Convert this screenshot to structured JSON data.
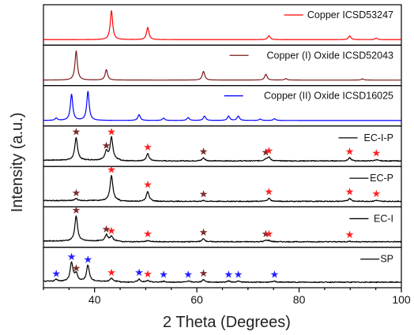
{
  "chart_data": {
    "type": "line",
    "layout": "stacked-panels",
    "xlabel": "2 Theta (Degrees)",
    "ylabel": "Intensity (a.u.)",
    "xlim": [
      30,
      100
    ],
    "x_ticks": [
      40,
      60,
      80,
      100
    ],
    "y_ticks_shown": false,
    "legend_position": "top-right of each panel",
    "marker_legend": {
      "dark_star": "Copper (I) Oxide peaks",
      "red_star": "Copper peaks",
      "blue_star": "Copper (II) Oxide peaks"
    },
    "colors": {
      "copper": "#ff0000",
      "cu2o": "#7a1a1a",
      "cuo": "#0000ff",
      "sample": "#000000",
      "star_red": "#ff2020",
      "star_dark": "#7a2a2a",
      "star_blue": "#2020ff"
    },
    "series": [
      {
        "name": "Copper ICSD53247",
        "color": "#ff0000",
        "kind": "reference",
        "peaks": [
          [
            43.3,
            1.0
          ],
          [
            50.4,
            0.42
          ],
          [
            74.1,
            0.14
          ],
          [
            89.9,
            0.13
          ],
          [
            95.1,
            0.05
          ]
        ],
        "stars": []
      },
      {
        "name": "Copper (I) Oxide ICSD52043",
        "color": "#7a1a1a",
        "kind": "reference",
        "peaks": [
          [
            36.4,
            1.0
          ],
          [
            42.3,
            0.36
          ],
          [
            61.3,
            0.3
          ],
          [
            73.5,
            0.2
          ],
          [
            77.4,
            0.05
          ],
          [
            92.4,
            0.04
          ]
        ],
        "stars": []
      },
      {
        "name": "Copper (II) Oxide ICSD16025",
        "color": "#0000ff",
        "kind": "reference",
        "peaks": [
          [
            32.5,
            0.08
          ],
          [
            35.5,
            0.9
          ],
          [
            38.7,
            1.0
          ],
          [
            48.7,
            0.2
          ],
          [
            53.5,
            0.08
          ],
          [
            58.3,
            0.1
          ],
          [
            61.5,
            0.15
          ],
          [
            66.2,
            0.15
          ],
          [
            68.1,
            0.15
          ],
          [
            72.4,
            0.05
          ],
          [
            75.2,
            0.06
          ]
        ],
        "stars": []
      },
      {
        "name": "EC-I-P",
        "color": "#000000",
        "kind": "sample",
        "peaks": [
          [
            36.4,
            0.9
          ],
          [
            42.3,
            0.35
          ],
          [
            43.3,
            0.9
          ],
          [
            50.4,
            0.28
          ],
          [
            61.3,
            0.12
          ],
          [
            73.5,
            0.08
          ],
          [
            74.1,
            0.14
          ],
          [
            89.9,
            0.12
          ],
          [
            95.1,
            0.05
          ]
        ],
        "stars": [
          [
            36.4,
            "dark"
          ],
          [
            42.3,
            "dark"
          ],
          [
            43.3,
            "red"
          ],
          [
            50.4,
            "red"
          ],
          [
            61.3,
            "dark"
          ],
          [
            73.5,
            "dark"
          ],
          [
            74.1,
            "red"
          ],
          [
            89.9,
            "red"
          ],
          [
            95.1,
            "red"
          ]
        ]
      },
      {
        "name": "EC-P",
        "color": "#000000",
        "kind": "sample",
        "peaks": [
          [
            36.4,
            0.08
          ],
          [
            43.3,
            1.0
          ],
          [
            50.4,
            0.4
          ],
          [
            61.3,
            0.03
          ],
          [
            74.1,
            0.12
          ],
          [
            89.9,
            0.12
          ],
          [
            95.1,
            0.04
          ]
        ],
        "stars": [
          [
            36.4,
            "dark"
          ],
          [
            43.3,
            "red"
          ],
          [
            50.4,
            "red"
          ],
          [
            61.3,
            "dark"
          ],
          [
            74.1,
            "red"
          ],
          [
            89.9,
            "red"
          ],
          [
            95.1,
            "red"
          ]
        ]
      },
      {
        "name": "EC-I",
        "color": "#000000",
        "kind": "sample",
        "peaks": [
          [
            36.4,
            1.0
          ],
          [
            42.3,
            0.25
          ],
          [
            43.3,
            0.18
          ],
          [
            50.4,
            0.05
          ],
          [
            61.3,
            0.12
          ],
          [
            73.5,
            0.05
          ],
          [
            74.1,
            0.05
          ],
          [
            89.9,
            0.02
          ]
        ],
        "stars": [
          [
            36.4,
            "dark"
          ],
          [
            42.3,
            "dark"
          ],
          [
            43.3,
            "red"
          ],
          [
            50.4,
            "red"
          ],
          [
            61.3,
            "dark"
          ],
          [
            73.5,
            "dark"
          ],
          [
            74.1,
            "red"
          ],
          [
            89.9,
            "red"
          ]
        ]
      },
      {
        "name": "SP",
        "color": "#000000",
        "kind": "sample",
        "peaks": [
          [
            32.5,
            0.08
          ],
          [
            35.5,
            0.75
          ],
          [
            36.4,
            0.3
          ],
          [
            38.7,
            0.65
          ],
          [
            43.3,
            0.12
          ],
          [
            48.7,
            0.12
          ],
          [
            50.4,
            0.06
          ],
          [
            53.5,
            0.04
          ],
          [
            58.3,
            0.05
          ],
          [
            61.3,
            0.1
          ],
          [
            66.2,
            0.05
          ],
          [
            68.1,
            0.04
          ],
          [
            75.2,
            0.04
          ]
        ],
        "stars": [
          [
            32.5,
            "blue"
          ],
          [
            35.5,
            "blue"
          ],
          [
            36.4,
            "dark"
          ],
          [
            38.7,
            "blue"
          ],
          [
            43.3,
            "red"
          ],
          [
            48.7,
            "blue"
          ],
          [
            50.4,
            "red"
          ],
          [
            53.5,
            "blue"
          ],
          [
            58.3,
            "blue"
          ],
          [
            61.3,
            "dark"
          ],
          [
            66.2,
            "blue"
          ],
          [
            68.1,
            "blue"
          ],
          [
            75.2,
            "blue"
          ]
        ]
      }
    ]
  }
}
